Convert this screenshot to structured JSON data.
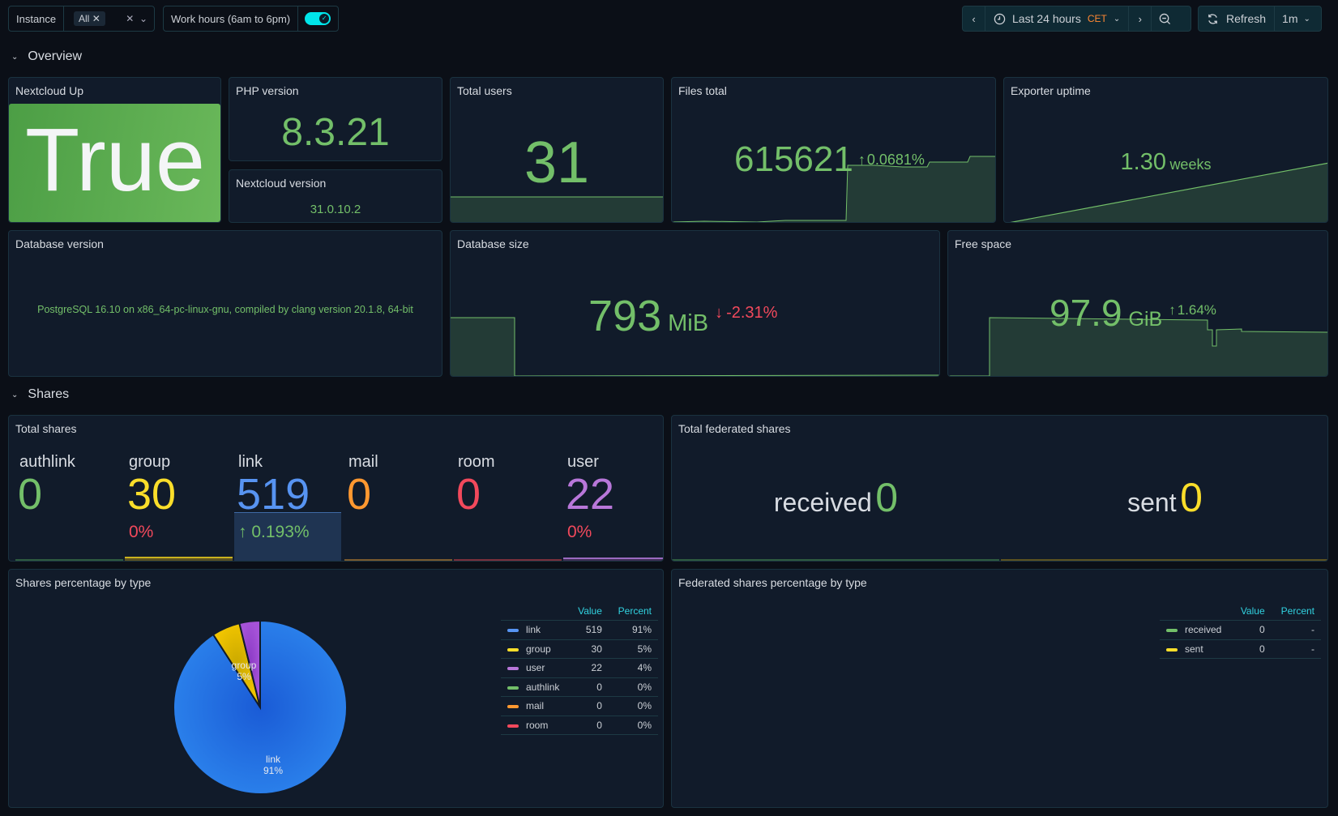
{
  "toolbar": {
    "instance_label": "Instance",
    "instance_value": "All",
    "work_hours_label": "Work hours (6am to 6pm)",
    "work_hours_enabled": true,
    "time_range": "Last 24 hours",
    "timezone": "CET",
    "refresh_label": "Refresh",
    "refresh_interval": "1m"
  },
  "rows": {
    "overview": "Overview",
    "shares": "Shares"
  },
  "overview": {
    "nextcloud_up": {
      "title": "Nextcloud Up",
      "value": "True"
    },
    "php_version": {
      "title": "PHP version",
      "value": "8.3.21"
    },
    "nextcloud_version": {
      "title": "Nextcloud version",
      "value": "31.0.10.2"
    },
    "total_users": {
      "title": "Total users",
      "value": "31"
    },
    "files_total": {
      "title": "Files total",
      "value": "615621",
      "change": "0.0681%"
    },
    "exporter_uptime": {
      "title": "Exporter uptime",
      "value": "1.30",
      "unit": "weeks"
    },
    "database_version": {
      "title": "Database version",
      "value": "PostgreSQL 16.10 on x86_64-pc-linux-gnu, compiled by clang version 20.1.8, 64-bit"
    },
    "database_size": {
      "title": "Database size",
      "value": "793",
      "unit": "MiB",
      "change": "-2.31%"
    },
    "free_space": {
      "title": "Free space",
      "value": "97.9",
      "unit": "GiB",
      "change": "1.64%"
    }
  },
  "shares": {
    "total_shares": {
      "title": "Total shares",
      "items": [
        {
          "label": "authlink",
          "value": "0",
          "pct": "",
          "color": "#73bf69"
        },
        {
          "label": "group",
          "value": "30",
          "pct": "0%",
          "color": "#fade2a"
        },
        {
          "label": "link",
          "value": "519",
          "pct": "0.193%",
          "color": "#5794f2"
        },
        {
          "label": "mail",
          "value": "0",
          "pct": "",
          "color": "#ff9830"
        },
        {
          "label": "room",
          "value": "0",
          "pct": "",
          "color": "#f2495c"
        },
        {
          "label": "user",
          "value": "22",
          "pct": "0%",
          "color": "#b877d9"
        }
      ]
    },
    "federated": {
      "title": "Total federated shares",
      "items": [
        {
          "label": "received",
          "value": "0",
          "color": "#73bf69"
        },
        {
          "label": "sent",
          "value": "0",
          "color": "#fade2a"
        }
      ]
    },
    "pie": {
      "title": "Shares percentage by type",
      "col_value": "Value",
      "col_percent": "Percent",
      "rows": [
        {
          "name": "link",
          "value": "519",
          "percent": "91%",
          "color": "#5794f2"
        },
        {
          "name": "group",
          "value": "30",
          "percent": "5%",
          "color": "#fade2a"
        },
        {
          "name": "user",
          "value": "22",
          "percent": "4%",
          "color": "#b877d9"
        },
        {
          "name": "authlink",
          "value": "0",
          "percent": "0%",
          "color": "#73bf69"
        },
        {
          "name": "mail",
          "value": "0",
          "percent": "0%",
          "color": "#ff9830"
        },
        {
          "name": "room",
          "value": "0",
          "percent": "0%",
          "color": "#f2495c"
        }
      ],
      "slice_labels": {
        "link_name": "link",
        "link_pct": "91%",
        "group_name": "group",
        "group_pct": "5%"
      }
    },
    "fed_pie": {
      "title": "Federated shares percentage by type",
      "col_value": "Value",
      "col_percent": "Percent",
      "rows": [
        {
          "name": "received",
          "value": "0",
          "percent": "-",
          "color": "#73bf69"
        },
        {
          "name": "sent",
          "value": "0",
          "percent": "-",
          "color": "#fade2a"
        }
      ]
    }
  }
}
